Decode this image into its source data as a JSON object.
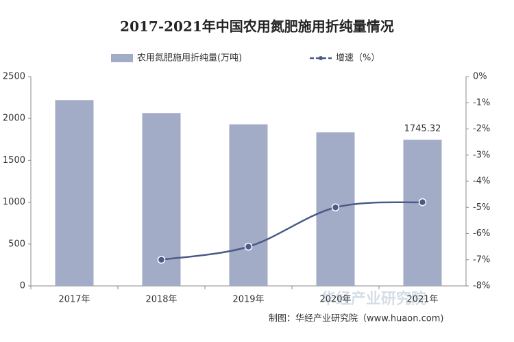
{
  "chart_data": {
    "type": "bar-line",
    "title": "2017-2021年中国农用氮肥施用折纯量情况",
    "categories": [
      "2017年",
      "2018年",
      "2019年",
      "2020年",
      "2021年"
    ],
    "series": [
      {
        "name": "农用氮肥施用折纯量(万吨)",
        "type": "bar",
        "color": "#a3acc6",
        "values": [
          2220,
          2065,
          1930,
          1835,
          1745.32
        ]
      },
      {
        "name": "增速（%）",
        "type": "line",
        "axis": "y2",
        "color": "#4b5b87",
        "values": [
          null,
          -7.0,
          -6.5,
          -5.0,
          -4.8
        ]
      }
    ],
    "ylim": [
      0,
      2500
    ],
    "yticks": [
      0,
      500,
      1000,
      1500,
      2000,
      2500
    ],
    "y2lim": [
      -8,
      0
    ],
    "y2ticks": [
      {
        "value": 0,
        "label": "0%"
      },
      {
        "value": -1,
        "label": "-1%"
      },
      {
        "value": -2,
        "label": "-2%"
      },
      {
        "value": -3,
        "label": "-3%"
      },
      {
        "value": -4,
        "label": "-4%"
      },
      {
        "value": -5,
        "label": "-5%"
      },
      {
        "value": -6,
        "label": "-6%"
      },
      {
        "value": -7,
        "label": "-7%"
      },
      {
        "value": -8,
        "label": "-8%"
      }
    ],
    "source": "制图：华经产业研究院（www.huaon.com)",
    "watermark": "华经产业研究院"
  }
}
